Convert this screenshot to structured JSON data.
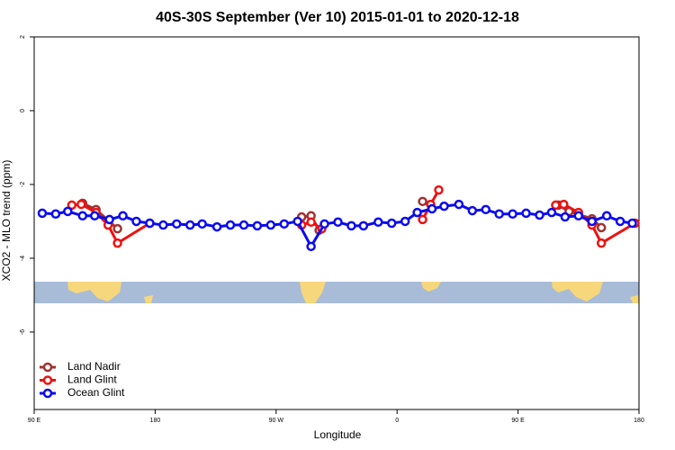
{
  "chart_data": {
    "type": "line",
    "title": "40S-30S September (Ver 10)   2015-01-01 to 2020-12-18",
    "x_label": "Longitude",
    "y_label": "XCO2 - MLO trend (ppm)",
    "xlim": [
      90,
      540
    ],
    "xticks": [
      {
        "value": 90,
        "label": "90 E"
      },
      {
        "value": 180,
        "label": "180"
      },
      {
        "value": 270,
        "label": "90 W"
      },
      {
        "value": 360,
        "label": "0"
      },
      {
        "value": 450,
        "label": "90 E"
      },
      {
        "value": 540,
        "label": "180"
      }
    ],
    "ylim": [
      -8.1,
      2
    ],
    "yticks": [
      2,
      0,
      -2,
      -4,
      -6
    ],
    "legend": "bottom-left",
    "series": [
      {
        "name": "Land Nadir",
        "color": "#a03232",
        "x": [
          126,
          136,
          152,
          null,
          289,
          296,
          302,
          null,
          379,
          null,
          480,
          488,
          505,
          512
        ],
        "values": [
          -2.51,
          -2.68,
          -3.2,
          null,
          -2.88,
          -2.85,
          -3.24,
          null,
          -2.46,
          null,
          -2.56,
          -2.73,
          -2.93,
          -3.17
        ]
      },
      {
        "name": "Land Glint",
        "color": "#ee1111",
        "x": [
          118,
          125,
          136,
          145,
          152,
          176,
          null,
          289,
          296,
          304,
          null,
          379,
          385,
          391,
          null,
          478,
          484,
          495,
          505,
          512,
          537
        ],
        "values": [
          -2.56,
          -2.54,
          -2.76,
          -3.1,
          -3.59,
          -3.05,
          null,
          -3.1,
          -3.02,
          -3.2,
          null,
          -2.95,
          -2.54,
          -2.15,
          null,
          -2.56,
          -2.54,
          -2.76,
          -3.1,
          -3.59,
          -3.05
        ]
      },
      {
        "name": "Ocean Glint",
        "color": "#0a0aee",
        "x": [
          96,
          106,
          115,
          126,
          135,
          146,
          156,
          166,
          176,
          186,
          196,
          206,
          215,
          226,
          236,
          246,
          256,
          266,
          276,
          286,
          296,
          306,
          316,
          326,
          335,
          346,
          356,
          366,
          375,
          386,
          395,
          406,
          416,
          426,
          436,
          446,
          456,
          466,
          475,
          485,
          495,
          505,
          516,
          526,
          535
        ],
        "values": [
          -2.78,
          -2.8,
          -2.73,
          -2.85,
          -2.85,
          -2.95,
          -2.85,
          -3.0,
          -3.05,
          -3.1,
          -3.07,
          -3.1,
          -3.07,
          -3.15,
          -3.1,
          -3.1,
          -3.12,
          -3.1,
          -3.07,
          -3.0,
          -3.68,
          -3.07,
          -3.02,
          -3.12,
          -3.12,
          -3.02,
          -3.05,
          -3.0,
          -2.76,
          -2.66,
          -2.59,
          -2.54,
          -2.71,
          -2.68,
          -2.8,
          -2.8,
          -2.78,
          -2.83,
          -2.76,
          -2.88,
          -2.85,
          -3.0,
          -2.85,
          -3.0,
          -3.05
        ]
      }
    ]
  }
}
